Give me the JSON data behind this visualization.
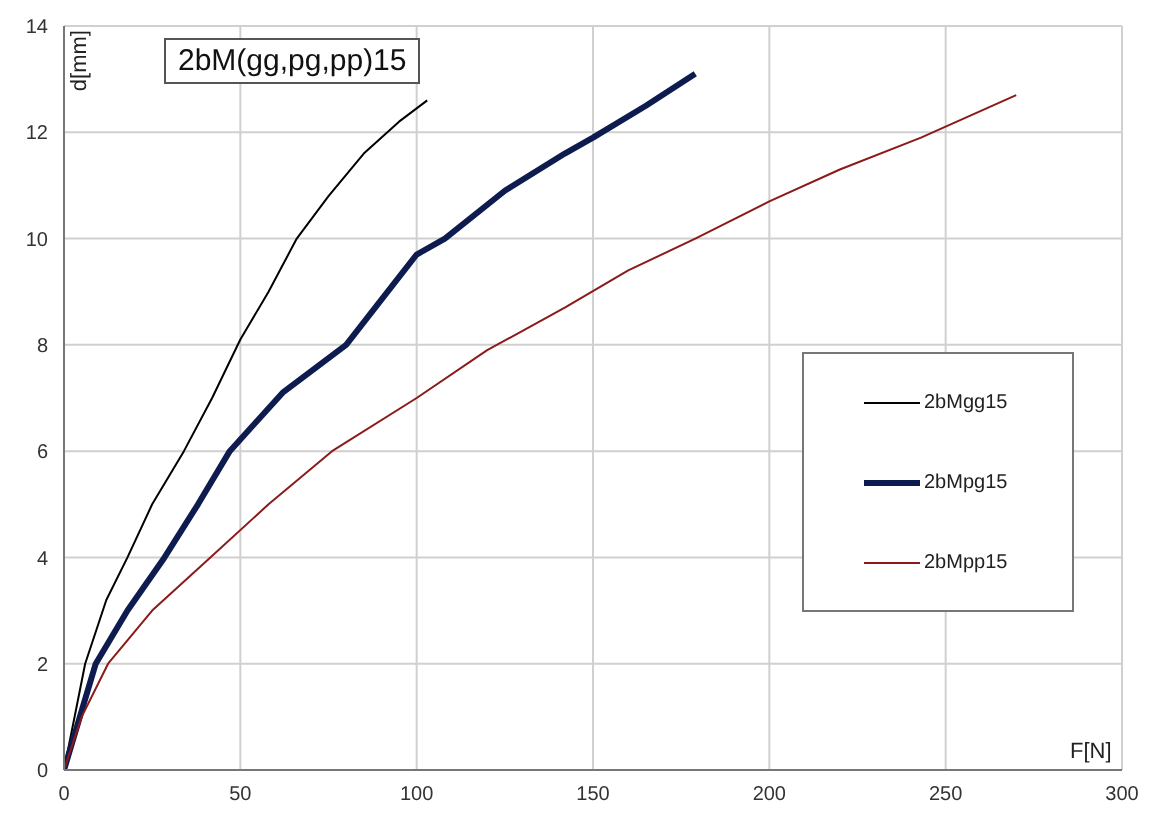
{
  "chart_data": {
    "type": "line",
    "title": "2bM(gg,pg,pp)15",
    "xlabel": "F[N]",
    "ylabel": "d[mm]",
    "xlim": [
      0,
      300
    ],
    "xticks": [
      0,
      50,
      100,
      150,
      200,
      250,
      300
    ],
    "ylim": [
      0,
      14
    ],
    "yticks": [
      0,
      2,
      4,
      6,
      8,
      10,
      12,
      14
    ],
    "grid": true,
    "legend": "right",
    "marker": "none",
    "line_style": "solid",
    "series": [
      {
        "name": "2bMgg15",
        "color": "#000000",
        "x": [
          0,
          6,
          12,
          18,
          25,
          34,
          42,
          50,
          58,
          66,
          75,
          85,
          95,
          103
        ],
        "values": [
          0,
          2,
          3.2,
          4,
          5,
          6,
          7,
          8.1,
          9,
          10,
          10.8,
          11.6,
          12.2,
          12.6
        ]
      },
      {
        "name": "2bMpg15",
        "color": "#0d1b4f",
        "x": [
          0,
          9,
          18,
          28.5,
          38,
          47,
          62,
          80,
          100,
          108,
          125,
          142,
          150,
          165,
          179
        ],
        "values": [
          0,
          2,
          3,
          4,
          5,
          6,
          7.1,
          8,
          9.7,
          10,
          10.9,
          11.6,
          11.9,
          12.5,
          13.1
        ]
      },
      {
        "name": "2bMpp15",
        "color": "#8b1a1a",
        "x": [
          0,
          5,
          12.5,
          25,
          41.5,
          58,
          76,
          100,
          120,
          142,
          160,
          179,
          200,
          220,
          243,
          270
        ],
        "values": [
          0,
          1,
          2,
          3,
          4,
          5,
          6,
          7,
          7.9,
          8.7,
          9.4,
          10,
          10.7,
          11.3,
          11.9,
          12.7
        ]
      }
    ]
  }
}
